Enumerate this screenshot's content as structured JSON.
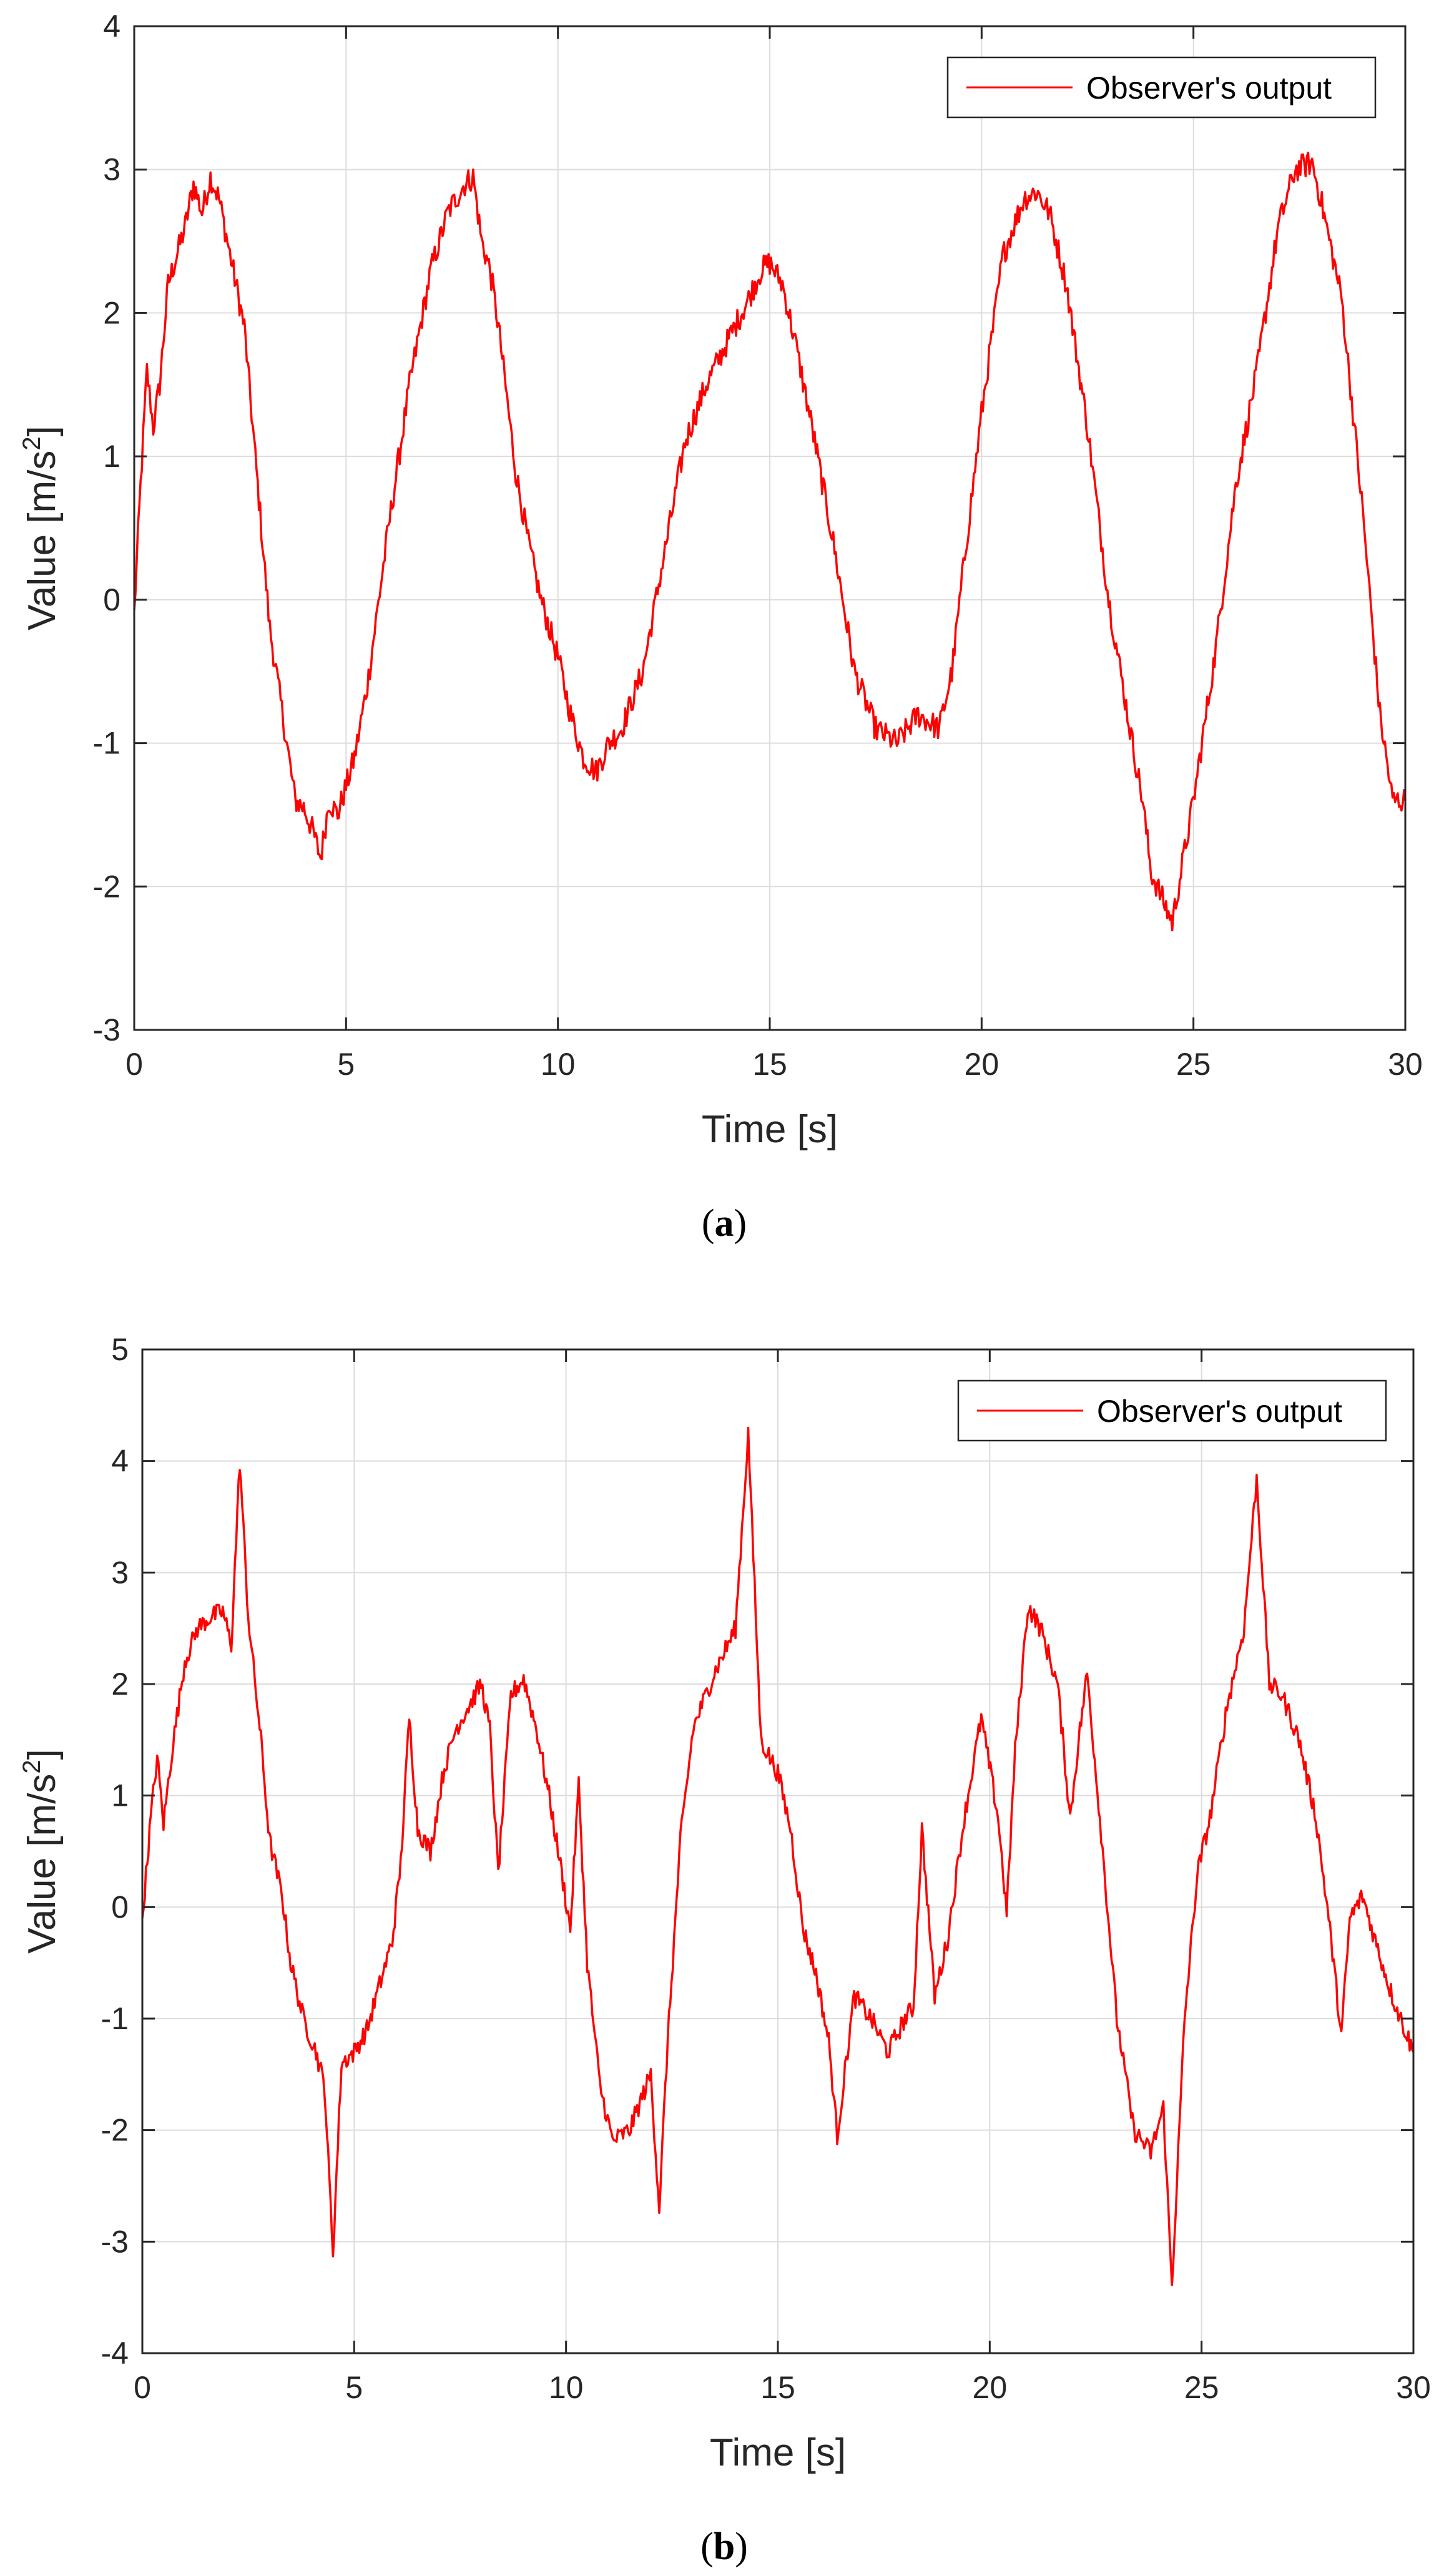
{
  "chart_data": [
    {
      "type": "line",
      "caption_letter": "a",
      "xlabel": "Time [s]",
      "ylabel_prefix": "Value [m/s",
      "ylabel_sup": "2",
      "ylabel_suffix": "]",
      "xlim": [
        0,
        30
      ],
      "ylim": [
        -3,
        4
      ],
      "xticks": [
        0,
        5,
        10,
        15,
        20,
        25,
        30
      ],
      "yticks": [
        -3,
        -2,
        -1,
        0,
        1,
        2,
        3,
        4
      ],
      "grid": true,
      "legend_position": "top-right",
      "series": [
        {
          "name": "Observer's output",
          "color": "#ff0000",
          "x": [
            0,
            0.15,
            0.3,
            0.45,
            0.6,
            0.8,
            1.0,
            1.2,
            1.4,
            1.6,
            1.8,
            2.0,
            2.2,
            2.4,
            2.6,
            2.8,
            3.0,
            3.2,
            3.4,
            3.6,
            3.8,
            4.0,
            4.2,
            4.4,
            4.6,
            4.8,
            5.0,
            5.2,
            5.5,
            6.0,
            6.5,
            7.0,
            7.4,
            7.8,
            8.0,
            8.2,
            8.4,
            8.6,
            8.8,
            9.0,
            9.3,
            9.6,
            10.0,
            10.3,
            10.6,
            10.9,
            11.2,
            11.5,
            12.0,
            12.5,
            13.0,
            13.5,
            14.0,
            14.5,
            14.8,
            15.0,
            15.3,
            15.6,
            16.0,
            16.5,
            17.0,
            17.5,
            18.0,
            18.5,
            19.0,
            19.3,
            19.6,
            20.0,
            20.5,
            21.0,
            21.3,
            21.6,
            22.0,
            22.5,
            23.0,
            23.5,
            23.8,
            24.0,
            24.5,
            25.0,
            25.5,
            26.0,
            26.5,
            27.0,
            27.4,
            27.8,
            28.0,
            28.5,
            29.0,
            29.4,
            29.7,
            30.0
          ],
          "y": [
            -0.1,
            0.8,
            1.6,
            1.2,
            1.5,
            2.2,
            2.4,
            2.6,
            2.9,
            2.7,
            2.95,
            2.8,
            2.5,
            2.2,
            1.9,
            1.2,
            0.5,
            -0.2,
            -0.6,
            -1.0,
            -1.4,
            -1.45,
            -1.6,
            -1.8,
            -1.4,
            -1.5,
            -1.3,
            -1.1,
            -0.6,
            0.5,
            1.5,
            2.3,
            2.7,
            2.9,
            2.95,
            2.5,
            2.3,
            1.9,
            1.4,
            0.9,
            0.4,
            0.0,
            -0.4,
            -0.8,
            -1.1,
            -1.2,
            -1.0,
            -0.9,
            -0.5,
            0.3,
            1.1,
            1.5,
            1.8,
            2.1,
            2.3,
            2.35,
            2.2,
            1.8,
            1.2,
            0.4,
            -0.5,
            -0.9,
            -1.0,
            -0.8,
            -0.9,
            -0.5,
            0.3,
            1.3,
            2.4,
            2.8,
            2.85,
            2.7,
            2.2,
            1.2,
            0.0,
            -0.9,
            -1.4,
            -1.9,
            -2.25,
            -1.4,
            -0.4,
            0.8,
            1.6,
            2.6,
            3.0,
            3.05,
            2.8,
            2.1,
            0.6,
            -0.8,
            -1.4,
            -1.4
          ]
        }
      ]
    },
    {
      "type": "line",
      "caption_letter": "b",
      "xlabel": "Time [s]",
      "ylabel_prefix": "Value [m/s",
      "ylabel_sup": "2",
      "ylabel_suffix": "]",
      "xlim": [
        0,
        30
      ],
      "ylim": [
        -4,
        5
      ],
      "xticks": [
        0,
        5,
        10,
        15,
        20,
        25,
        30
      ],
      "yticks": [
        -4,
        -3,
        -2,
        -1,
        0,
        1,
        2,
        3,
        4,
        5
      ],
      "grid": true,
      "legend_position": "top-right",
      "series": [
        {
          "name": "Observer's output",
          "color": "#ff0000",
          "x": [
            0,
            0.2,
            0.35,
            0.5,
            0.7,
            1.0,
            1.3,
            1.6,
            1.9,
            2.1,
            2.3,
            2.5,
            2.8,
            3.0,
            3.3,
            3.5,
            3.8,
            4.1,
            4.3,
            4.5,
            4.7,
            5.0,
            5.3,
            5.6,
            5.9,
            6.1,
            6.3,
            6.5,
            6.8,
            7.1,
            7.4,
            7.7,
            8.0,
            8.2,
            8.4,
            8.7,
            9.0,
            9.3,
            9.6,
            9.9,
            10.1,
            10.3,
            10.5,
            10.8,
            11.1,
            11.5,
            11.8,
            12.0,
            12.2,
            12.4,
            12.7,
            13.0,
            13.5,
            14.0,
            14.3,
            14.6,
            15.0,
            15.3,
            15.6,
            15.9,
            16.2,
            16.4,
            16.8,
            17.2,
            17.6,
            18.0,
            18.2,
            18.4,
            18.7,
            19.0,
            19.4,
            19.8,
            20.2,
            20.4,
            20.6,
            20.9,
            21.2,
            21.6,
            21.9,
            22.1,
            22.3,
            22.6,
            23.0,
            23.4,
            23.8,
            24.1,
            24.3,
            24.6,
            24.9,
            25.2,
            25.6,
            26.0,
            26.3,
            26.6,
            26.9,
            27.3,
            27.7,
            28.0,
            28.3,
            28.5,
            28.8,
            29.1,
            29.5,
            30.0
          ],
          "y": [
            -0.1,
            0.8,
            1.35,
            0.75,
            1.4,
            2.2,
            2.5,
            2.6,
            2.65,
            2.35,
            4.0,
            2.6,
            1.5,
            0.6,
            0.1,
            -0.5,
            -1.0,
            -1.3,
            -1.6,
            -3.1,
            -1.4,
            -1.3,
            -1.1,
            -0.7,
            -0.3,
            0.4,
            1.7,
            0.7,
            0.5,
            1.2,
            1.6,
            1.8,
            2.0,
            1.6,
            0.3,
            1.9,
            2.05,
            1.6,
            1.0,
            0.3,
            -0.2,
            1.1,
            -0.5,
            -1.6,
            -2.1,
            -2.0,
            -1.7,
            -1.5,
            -2.7,
            -1.2,
            0.6,
            1.6,
            2.1,
            2.5,
            4.25,
            1.5,
            1.2,
            0.7,
            -0.2,
            -0.6,
            -1.2,
            -2.05,
            -0.8,
            -1.0,
            -1.3,
            -1.0,
            -0.9,
            0.7,
            -0.8,
            -0.3,
            0.8,
            1.7,
            0.8,
            -0.05,
            1.4,
            2.7,
            2.5,
            2.0,
            0.8,
            1.5,
            2.1,
            0.8,
            -1.0,
            -2.0,
            -2.2,
            -1.8,
            -3.4,
            -1.0,
            0.3,
            0.8,
            1.8,
            2.5,
            3.85,
            2.0,
            1.9,
            1.5,
            0.8,
            -0.1,
            -1.15,
            -0.1,
            0.1,
            -0.3,
            -0.8,
            -1.3
          ]
        }
      ]
    }
  ]
}
